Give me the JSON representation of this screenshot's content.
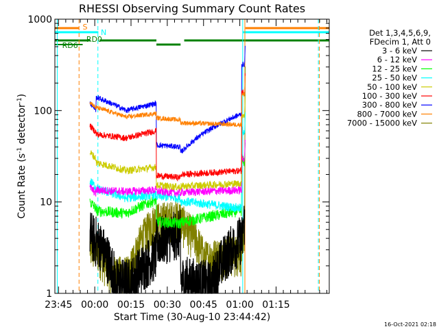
{
  "chart_data": {
    "type": "line",
    "title": "RHESSI Observing Summary Count Rates",
    "xlabel": "Start Time (30-Aug-10 23:44:42)",
    "ylabel_main": "Count Rate (s",
    "ylabel_sup1": "-1",
    "ylabel_mid": " detector",
    "ylabel_sup2": "-1",
    "ylabel_end": ")",
    "yscale": "log",
    "ylim": [
      1,
      1000
    ],
    "xlim_minutes": [
      -1.5,
      112
    ],
    "x_ticks": [
      {
        "label": "23:45",
        "minutes": 0
      },
      {
        "label": "00:00",
        "minutes": 15
      },
      {
        "label": "00:15",
        "minutes": 30
      },
      {
        "label": "00:30",
        "minutes": 45
      },
      {
        "label": "00:45",
        "minutes": 60
      },
      {
        "label": "01:00",
        "minutes": 75
      },
      {
        "label": "01:15",
        "minutes": 90
      }
    ],
    "y_ticks": [
      {
        "label": "1",
        "value": 1
      },
      {
        "label": "10",
        "value": 10
      },
      {
        "label": "100",
        "value": 100
      },
      {
        "label": "1000",
        "value": 1000
      }
    ],
    "legend_header": [
      "Det 1,3,4,5,6,9,",
      "FDecim 1, Att 0"
    ],
    "series": [
      {
        "name": "3 - 6 keV",
        "color": "#000000"
      },
      {
        "name": "6 - 12 keV",
        "color": "#ff00ff"
      },
      {
        "name": "12 - 25 keV",
        "color": "#00ff00"
      },
      {
        "name": "25 - 50 keV",
        "color": "#00ffff"
      },
      {
        "name": "50 - 100 keV",
        "color": "#cccc00"
      },
      {
        "name": "100 - 300 keV",
        "color": "#ff0000"
      },
      {
        "name": "300 - 800 keV",
        "color": "#0000ff"
      },
      {
        "name": "800 - 7000 keV",
        "color": "#ff8000"
      },
      {
        "name": "7000 - 15000 keV",
        "color": "#808000"
      }
    ],
    "flags": [
      {
        "label": "S",
        "color": "#ff8000"
      },
      {
        "label": "N",
        "color": "#00ffff"
      },
      {
        "label": "RD0",
        "color": "#008000"
      },
      {
        "label": "RD6",
        "color": "#008000"
      }
    ],
    "timestamp": "16-Oct-2021 02:18"
  }
}
